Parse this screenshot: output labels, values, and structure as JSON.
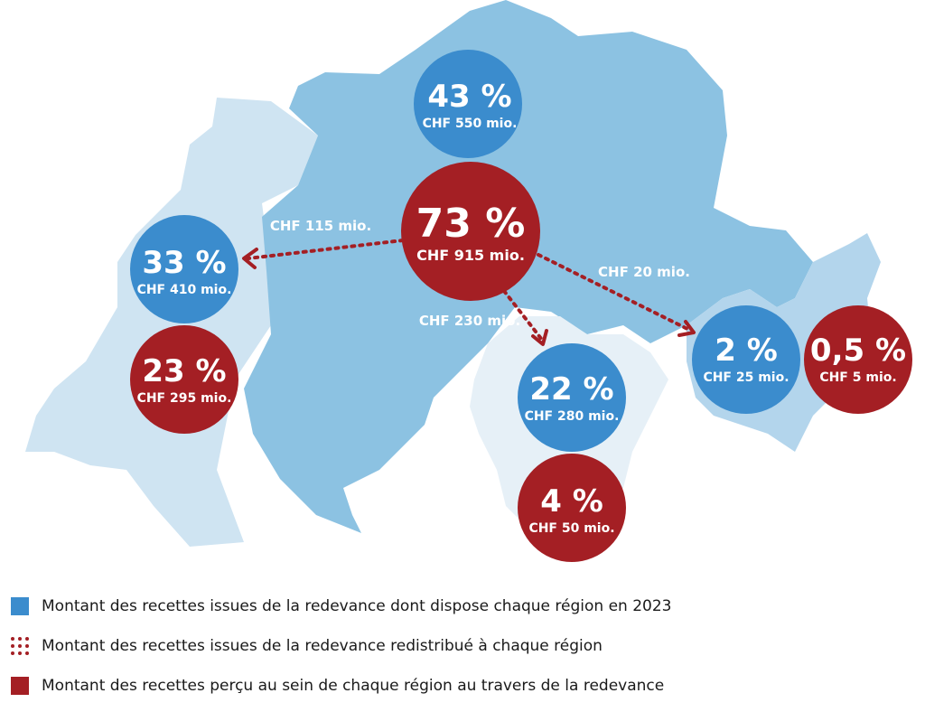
{
  "colors": {
    "blue_bubble": "#3b8ccd",
    "red_bubble": "#a41f24",
    "region_german": "#8cc2e2",
    "region_french": "#cfe4f2",
    "region_italian": "#e6f0f7",
    "region_romansh": "#b3d5ec"
  },
  "bubbles": {
    "german_blue": {
      "pct": "43 %",
      "amount": "CHF 550 mio."
    },
    "german_red": {
      "pct": "73 %",
      "amount": "CHF 915 mio."
    },
    "french_blue": {
      "pct": "33 %",
      "amount": "CHF 410 mio."
    },
    "french_red": {
      "pct": "23 %",
      "amount": "CHF 295 mio."
    },
    "italian_blue": {
      "pct": "22 %",
      "amount": "CHF 280 mio."
    },
    "italian_red": {
      "pct": "4 %",
      "amount": "CHF 50 mio."
    },
    "romansh_blue": {
      "pct": "2 %",
      "amount": "CHF 25 mio."
    },
    "romansh_red": {
      "pct": "0,5 %",
      "amount": "CHF 5 mio."
    }
  },
  "flows": {
    "to_french": "CHF 115 mio.",
    "to_italian": "CHF 230 mio.",
    "to_romansh": "CHF 20 mio."
  },
  "legend": {
    "blue": "Montant des recettes issues de la redevance dont dispose chaque région en 2023",
    "dotted": "Montant des recettes issues de la redevance redistribué à chaque région",
    "red": "Montant des recettes perçu au sein de chaque région au travers de la redevance"
  }
}
